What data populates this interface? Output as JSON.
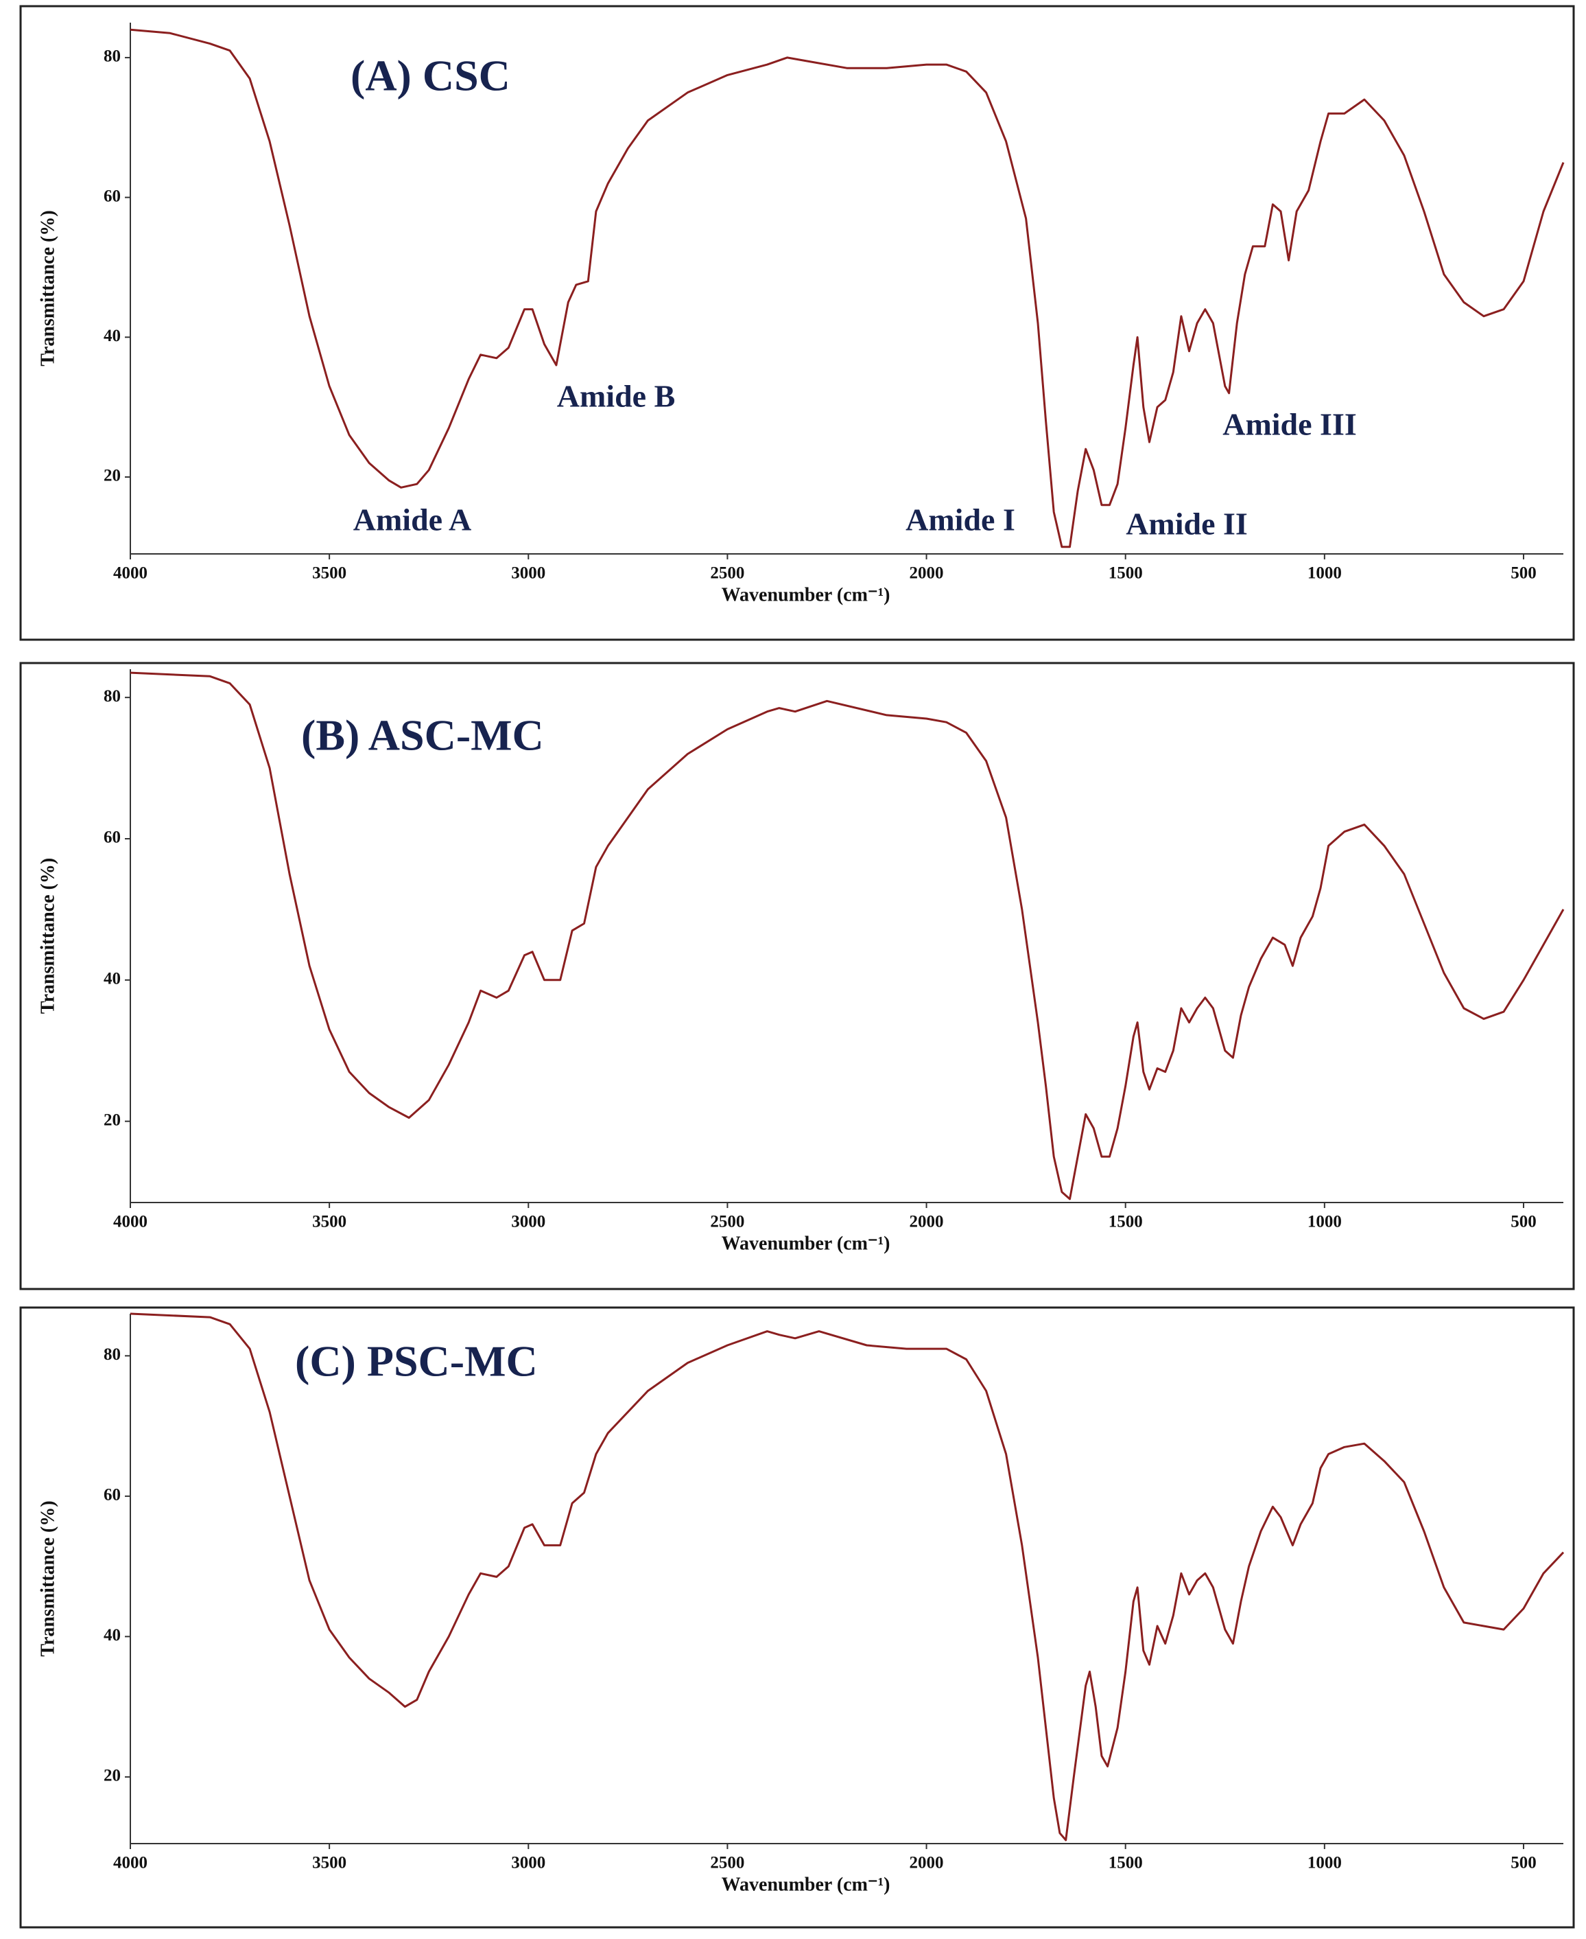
{
  "chart_data": [
    {
      "type": "line",
      "title": "(A) CSC",
      "xlabel": "Wavenumber (cm⁻¹)",
      "ylabel": "Transmittance (%)",
      "color": "#8b1f1f",
      "xlim": [
        4000,
        400
      ],
      "xticks": [
        4000,
        3500,
        3000,
        2500,
        2000,
        1500,
        1000,
        500
      ],
      "ylim": [
        9,
        85
      ],
      "yticks": [
        20,
        40,
        60,
        80
      ],
      "annotations": [
        "Amide A",
        "Amide B",
        "Amide I",
        "Amide II",
        "Amide III"
      ],
      "x": [
        4000,
        3900,
        3800,
        3750,
        3700,
        3650,
        3600,
        3550,
        3500,
        3450,
        3400,
        3350,
        3320,
        3280,
        3250,
        3200,
        3150,
        3120,
        3080,
        3050,
        3010,
        2990,
        2960,
        2930,
        2900,
        2880,
        2850,
        2830,
        2800,
        2750,
        2700,
        2600,
        2500,
        2400,
        2350,
        2300,
        2200,
        2100,
        2000,
        1950,
        1900,
        1850,
        1800,
        1750,
        1720,
        1700,
        1680,
        1660,
        1640,
        1620,
        1600,
        1580,
        1560,
        1540,
        1520,
        1500,
        1480,
        1470,
        1455,
        1440,
        1420,
        1400,
        1380,
        1360,
        1340,
        1320,
        1300,
        1280,
        1250,
        1240,
        1220,
        1200,
        1180,
        1150,
        1130,
        1110,
        1090,
        1070,
        1040,
        1010,
        990,
        950,
        900,
        850,
        800,
        750,
        700,
        650,
        600,
        550,
        500,
        450,
        400
      ],
      "values": [
        84,
        83.5,
        82,
        81,
        77,
        68,
        56,
        43,
        33,
        26,
        22,
        19.5,
        18.5,
        19,
        21,
        27,
        34,
        37.5,
        37,
        38.5,
        44,
        44,
        39,
        36,
        45,
        47.5,
        48,
        58,
        62,
        67,
        71,
        75,
        77.5,
        79,
        80,
        79.5,
        78.5,
        78.5,
        79,
        79,
        78,
        75,
        68,
        57,
        42,
        28,
        15,
        10,
        10,
        18,
        24,
        21,
        16,
        16,
        19,
        27,
        36,
        40,
        30,
        25,
        30,
        31,
        35,
        43,
        38,
        42,
        44,
        42,
        33,
        32,
        42,
        49,
        53,
        53,
        59,
        58,
        51,
        58,
        61,
        68,
        72,
        72,
        74,
        71,
        66,
        58,
        49,
        45,
        43,
        44,
        48,
        58,
        65
      ]
    },
    {
      "type": "line",
      "title": "(B) ASC-MC",
      "xlabel": "Wavenumber (cm⁻¹)",
      "ylabel": "Transmittance (%)",
      "color": "#8b1f1f",
      "xlim": [
        4000,
        400
      ],
      "xticks": [
        4000,
        3500,
        3000,
        2500,
        2000,
        1500,
        1000,
        500
      ],
      "ylim": [
        8.5,
        84
      ],
      "yticks": [
        20,
        40,
        60,
        80
      ],
      "x": [
        4000,
        3800,
        3750,
        3700,
        3650,
        3600,
        3550,
        3500,
        3450,
        3400,
        3350,
        3300,
        3250,
        3200,
        3150,
        3120,
        3080,
        3050,
        3010,
        2990,
        2960,
        2920,
        2890,
        2860,
        2830,
        2800,
        2700,
        2600,
        2500,
        2400,
        2370,
        2330,
        2250,
        2100,
        2000,
        1950,
        1900,
        1850,
        1800,
        1760,
        1720,
        1700,
        1680,
        1660,
        1640,
        1620,
        1600,
        1580,
        1560,
        1540,
        1520,
        1500,
        1480,
        1470,
        1455,
        1440,
        1420,
        1400,
        1380,
        1360,
        1340,
        1320,
        1300,
        1280,
        1250,
        1230,
        1210,
        1190,
        1160,
        1130,
        1100,
        1080,
        1060,
        1030,
        1010,
        990,
        950,
        900,
        850,
        800,
        750,
        700,
        650,
        600,
        550,
        500,
        450,
        400
      ],
      "values": [
        83.5,
        83,
        82,
        79,
        70,
        55,
        42,
        33,
        27,
        24,
        22,
        20.5,
        23,
        28,
        34,
        38.5,
        37.5,
        38.5,
        43.5,
        44,
        40,
        40,
        47,
        48,
        56,
        59,
        67,
        72,
        75.5,
        78,
        78.5,
        78,
        79.5,
        77.5,
        77,
        76.5,
        75,
        71,
        63,
        50,
        34,
        25,
        15,
        10,
        9,
        15,
        21,
        19,
        15,
        15,
        19,
        25,
        32,
        34,
        27,
        24.5,
        27.5,
        27,
        30,
        36,
        34,
        36,
        37.5,
        36,
        30,
        29,
        35,
        39,
        43,
        46,
        45,
        42,
        46,
        49,
        53,
        59,
        61,
        62,
        59,
        55,
        48,
        41,
        36,
        34.5,
        35.5,
        40,
        45,
        50
      ]
    },
    {
      "type": "line",
      "title": "(C) PSC-MC",
      "xlabel": "Wavenumber (cm⁻¹)",
      "ylabel": "Transmittance (%)",
      "color": "#8b1f1f",
      "xlim": [
        4000,
        400
      ],
      "xticks": [
        4000,
        3500,
        3000,
        2500,
        2000,
        1500,
        1000,
        500
      ],
      "ylim": [
        10.5,
        86
      ],
      "yticks": [
        20,
        40,
        60,
        80
      ],
      "x": [
        4000,
        3800,
        3750,
        3700,
        3650,
        3600,
        3550,
        3500,
        3450,
        3400,
        3350,
        3310,
        3280,
        3250,
        3200,
        3150,
        3120,
        3080,
        3050,
        3010,
        2990,
        2960,
        2920,
        2890,
        2860,
        2830,
        2800,
        2700,
        2600,
        2500,
        2400,
        2370,
        2330,
        2270,
        2150,
        2050,
        1950,
        1900,
        1850,
        1800,
        1760,
        1720,
        1700,
        1680,
        1665,
        1650,
        1630,
        1600,
        1590,
        1575,
        1560,
        1545,
        1520,
        1500,
        1480,
        1470,
        1455,
        1440,
        1420,
        1400,
        1380,
        1360,
        1340,
        1320,
        1300,
        1280,
        1250,
        1230,
        1210,
        1190,
        1160,
        1130,
        1110,
        1080,
        1060,
        1030,
        1010,
        990,
        950,
        900,
        850,
        800,
        750,
        700,
        650,
        600,
        550,
        500,
        450,
        400
      ],
      "values": [
        86,
        85.5,
        84.5,
        81,
        72,
        60,
        48,
        41,
        37,
        34,
        32,
        30,
        31,
        35,
        40,
        46,
        49,
        48.5,
        50,
        55.5,
        56,
        53,
        53,
        59,
        60.5,
        66,
        69,
        75,
        79,
        81.5,
        83.5,
        83,
        82.5,
        83.5,
        81.5,
        81,
        81,
        79.5,
        75,
        66,
        53,
        37,
        27,
        17,
        12,
        11,
        20,
        33,
        35,
        30,
        23,
        21.5,
        27,
        35,
        45,
        47,
        38,
        36,
        41.5,
        39,
        43,
        49,
        46,
        48,
        49,
        47,
        41,
        39,
        45,
        50,
        55,
        58.5,
        57,
        53,
        56,
        59,
        64,
        66,
        67,
        67.5,
        65,
        62,
        55,
        47,
        42,
        41.5,
        41,
        44,
        49,
        52
      ]
    }
  ]
}
